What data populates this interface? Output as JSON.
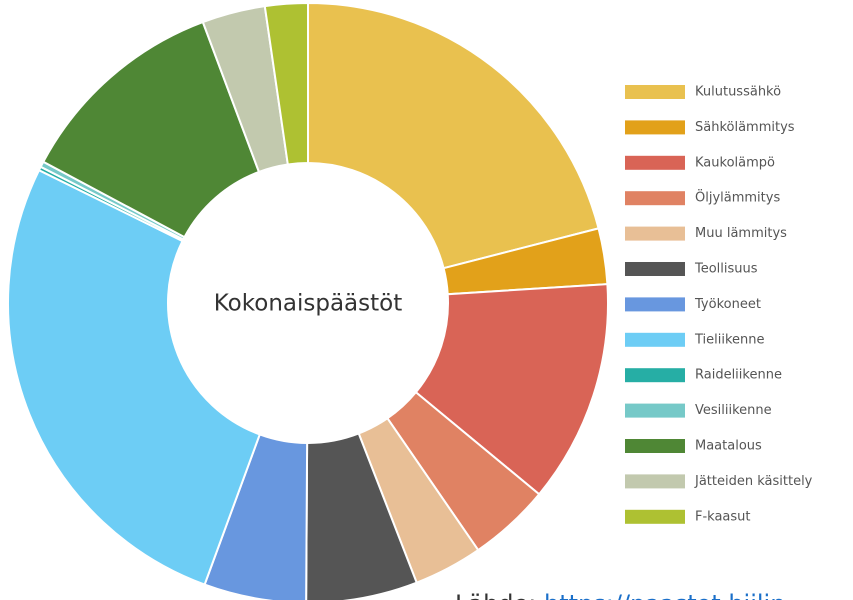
{
  "chart_data": {
    "type": "donut",
    "center_label": "Kokonaispäästöt",
    "source_label": "Lähde:",
    "source_link": "https://paastot.hiilin",
    "categories": [
      "Kulutussähkö",
      "Sähkölämmitys",
      "Kaukolämpö",
      "Öljylämmitys",
      "Muu lämmitys",
      "Teollisuus",
      "Työkoneet",
      "Tieliikenne",
      "Raideliikenne",
      "Vesiliikenne",
      "Maatalous",
      "Jätteiden käsittely",
      "F-kaasut"
    ],
    "values": [
      21,
      3,
      12,
      4.4,
      3.7,
      6,
      5.5,
      26.7,
      0.2,
      0.3,
      11.5,
      3.4,
      2.3
    ],
    "colors": [
      "#e9c14f",
      "#e2a11a",
      "#d96456",
      "#e08263",
      "#e8bf96",
      "#555555",
      "#6897df",
      "#6dcdf5",
      "#26aea5",
      "#76c9c8",
      "#4f8735",
      "#c2c9ae",
      "#aec132"
    ]
  }
}
